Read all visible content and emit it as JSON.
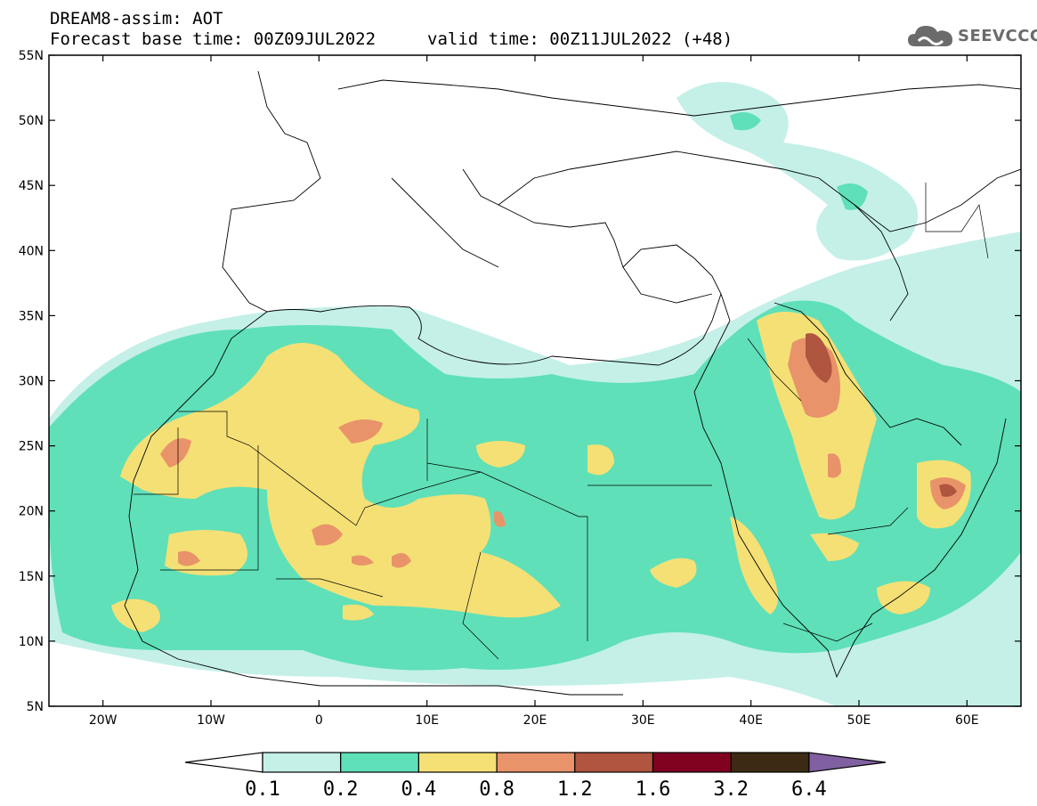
{
  "header": {
    "line1": "DREAM8-assim: AOT",
    "line2": "Forecast base time: 00Z09JUL2022",
    "valid": "valid time: 00Z11JUL2022 (+48)"
  },
  "logo": {
    "text": "SEEVCCC",
    "icon": "cloud-icon"
  },
  "map": {
    "lat_labels": [
      "55N",
      "50N",
      "45N",
      "40N",
      "35N",
      "30N",
      "25N",
      "20N",
      "15N",
      "10N",
      "5N"
    ],
    "lon_labels": [
      "20W",
      "10W",
      "0",
      "10E",
      "20E",
      "30E",
      "40E",
      "50E",
      "60E"
    ],
    "lat_range": [
      5,
      55
    ],
    "lon_range": [
      -25,
      65
    ]
  },
  "colorbar": {
    "labels": [
      "0.1",
      "0.2",
      "0.4",
      "0.8",
      "1.2",
      "1.6",
      "3.2",
      "6.4"
    ],
    "colors": [
      "#c4f0e8",
      "#5fe0b8",
      "#f5e076",
      "#e8936a",
      "#b0553f",
      "#800020",
      "#3d2a14",
      "#8060a0"
    ]
  },
  "colors": {
    "lev1": "#c4f0e8",
    "lev2": "#5fe0b8",
    "lev3": "#f5e076",
    "lev4": "#e8936a",
    "lev5": "#b0553f"
  }
}
